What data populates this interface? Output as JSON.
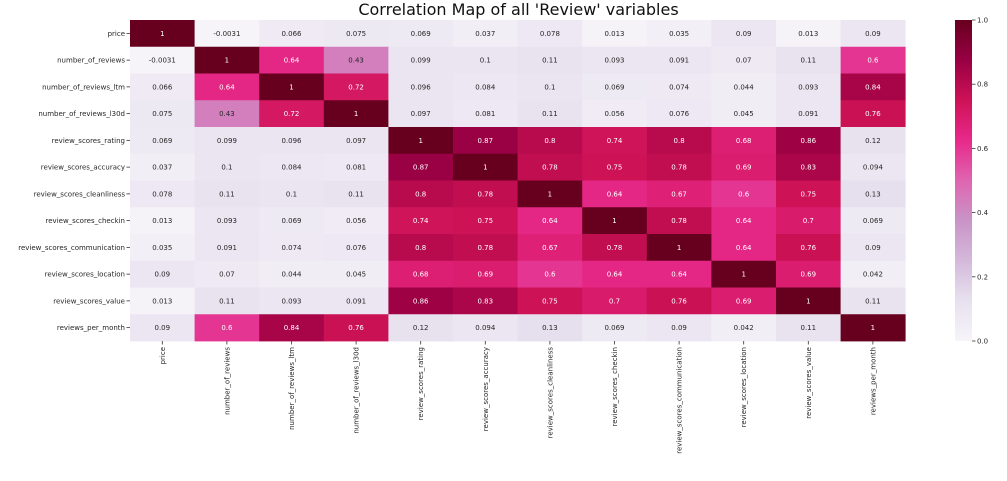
{
  "chart_data": {
    "type": "heatmap",
    "title": "Correlation Map of all 'Review' variables",
    "xlabel": "",
    "ylabel": "",
    "rows": [
      "price",
      "number_of_reviews",
      "number_of_reviews_ltm",
      "number_of_reviews_l30d",
      "review_scores_rating",
      "review_scores_accuracy",
      "review_scores_cleanliness",
      "review_scores_checkin",
      "review_scores_communication",
      "review_scores_location",
      "review_scores_value",
      "reviews_per_month"
    ],
    "columns": [
      "price",
      "number_of_reviews",
      "number_of_reviews_ltm",
      "number_of_reviews_l30d",
      "review_scores_rating",
      "review_scores_accuracy",
      "review_scores_cleanliness",
      "review_scores_checkin",
      "review_scores_communication",
      "review_scores_location",
      "review_scores_value",
      "reviews_per_month"
    ],
    "values": [
      [
        1,
        -0.0031,
        0.066,
        0.075,
        0.069,
        0.037,
        0.078,
        0.013,
        0.035,
        0.09,
        0.013,
        0.09
      ],
      [
        -0.0031,
        1,
        0.64,
        0.43,
        0.099,
        0.1,
        0.11,
        0.093,
        0.091,
        0.07,
        0.11,
        0.6
      ],
      [
        0.066,
        0.64,
        1,
        0.72,
        0.096,
        0.084,
        0.1,
        0.069,
        0.074,
        0.044,
        0.093,
        0.84
      ],
      [
        0.075,
        0.43,
        0.72,
        1,
        0.097,
        0.081,
        0.11,
        0.056,
        0.076,
        0.045,
        0.091,
        0.76
      ],
      [
        0.069,
        0.099,
        0.096,
        0.097,
        1,
        0.87,
        0.8,
        0.74,
        0.8,
        0.68,
        0.86,
        0.12
      ],
      [
        0.037,
        0.1,
        0.084,
        0.081,
        0.87,
        1,
        0.78,
        0.75,
        0.78,
        0.69,
        0.83,
        0.094
      ],
      [
        0.078,
        0.11,
        0.1,
        0.11,
        0.8,
        0.78,
        1,
        0.64,
        0.67,
        0.6,
        0.75,
        0.13
      ],
      [
        0.013,
        0.093,
        0.069,
        0.056,
        0.74,
        0.75,
        0.64,
        1,
        0.78,
        0.64,
        0.7,
        0.069
      ],
      [
        0.035,
        0.091,
        0.074,
        0.076,
        0.8,
        0.78,
        0.67,
        0.78,
        1,
        0.64,
        0.76,
        0.09
      ],
      [
        0.09,
        0.07,
        0.044,
        0.045,
        0.68,
        0.69,
        0.6,
        0.64,
        0.64,
        1,
        0.69,
        0.042
      ],
      [
        0.013,
        0.11,
        0.093,
        0.091,
        0.86,
        0.83,
        0.75,
        0.7,
        0.76,
        0.69,
        1,
        0.11
      ],
      [
        0.09,
        0.6,
        0.84,
        0.76,
        0.12,
        0.094,
        0.13,
        0.069,
        0.09,
        0.042,
        0.11,
        1
      ]
    ],
    "colorbar": {
      "ticks": [
        0.0,
        0.2,
        0.4,
        0.6,
        0.8,
        1.0
      ],
      "tick_labels": [
        "0.0",
        "0.2",
        "0.4",
        "0.6",
        "0.8",
        "1.0"
      ],
      "range": [
        0,
        1
      ]
    },
    "colormap": "PuRd",
    "colormap_stops": [
      "#f7f4f9",
      "#e7e1ef",
      "#d4b9da",
      "#c994c7",
      "#df65b0",
      "#e7298a",
      "#ce1256",
      "#980043",
      "#67001f"
    ],
    "grid": false,
    "legend": "colorbar-right"
  }
}
